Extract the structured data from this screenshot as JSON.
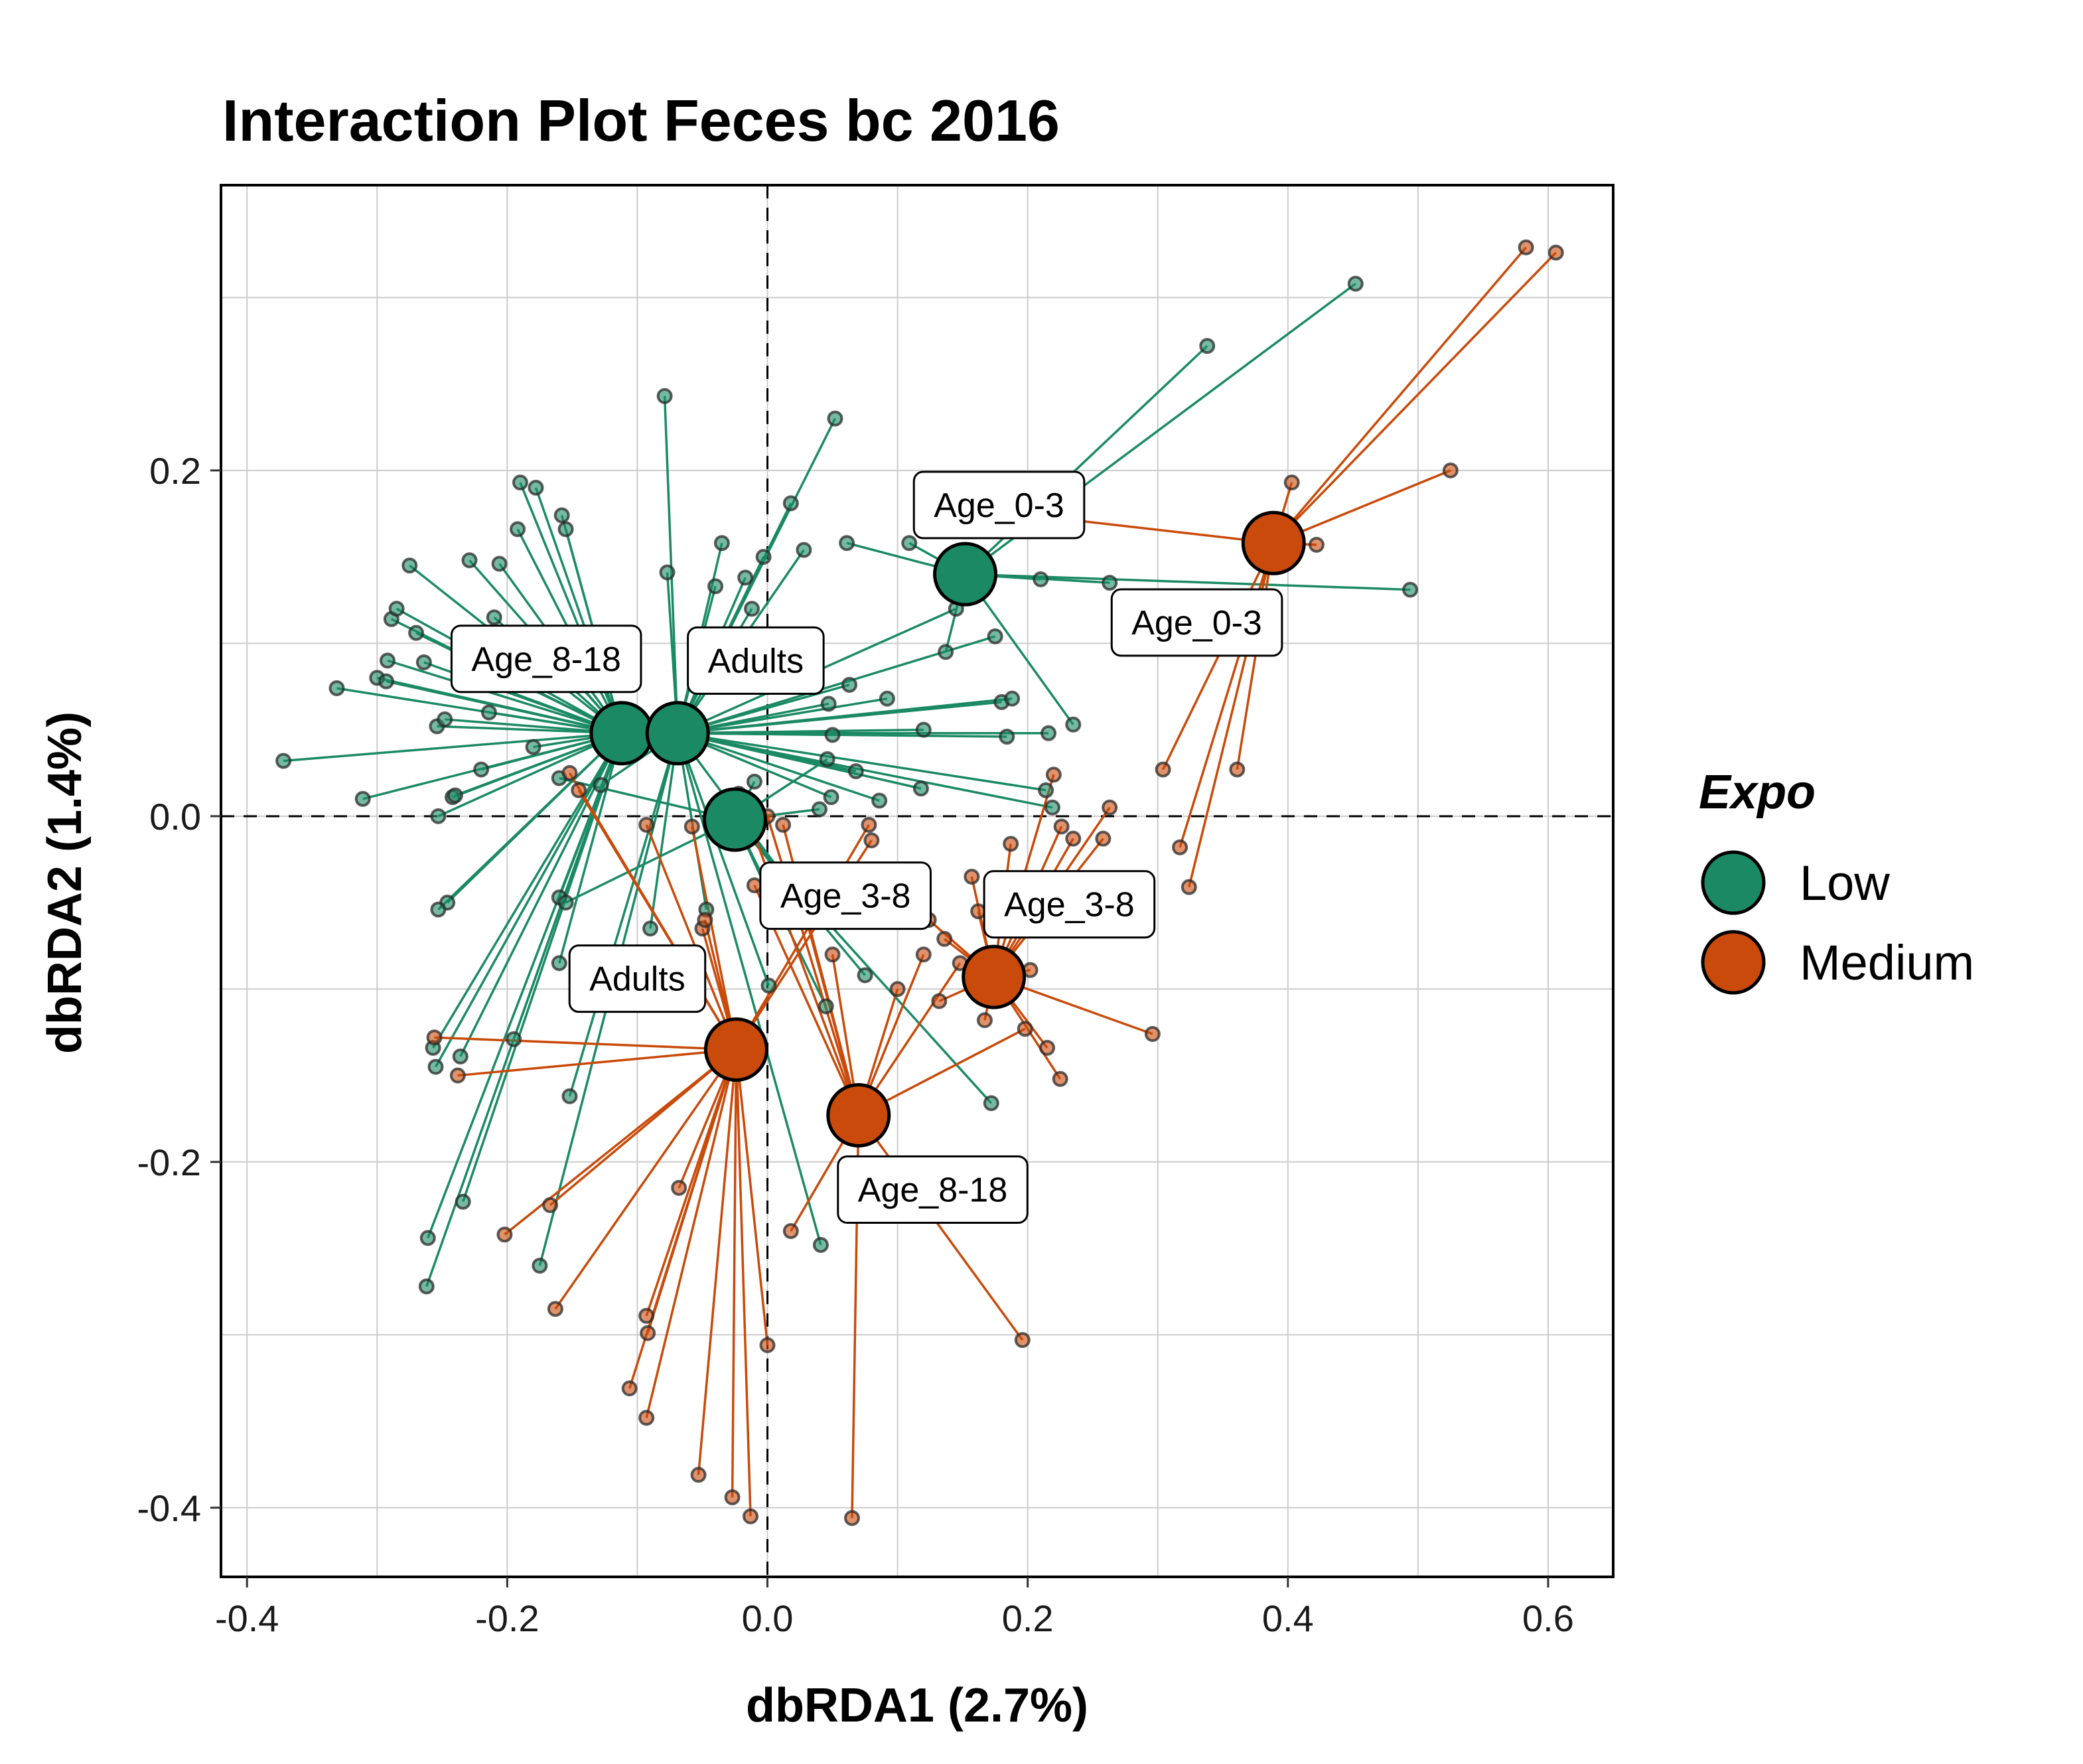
{
  "chart_data": {
    "type": "scatter",
    "title": "Interaction Plot Feces bc 2016",
    "xlabel": "dbRDA1 (2.7%)",
    "ylabel": "dbRDA2 (1.4%)",
    "xlim": [
      -0.42,
      0.65
    ],
    "ylim": [
      -0.44,
      0.365
    ],
    "xticks": [
      -0.4,
      -0.2,
      0.0,
      0.2,
      0.4,
      0.6
    ],
    "xtick_labels": [
      "-0.4",
      "-0.2",
      "0.0",
      "0.2",
      "0.4",
      "0.6"
    ],
    "yticks": [
      -0.4,
      -0.2,
      0.0,
      0.2
    ],
    "ytick_labels": [
      "-0.4",
      "-0.2",
      "0.0",
      "0.2"
    ],
    "grid": true,
    "reference_lines": {
      "x": 0,
      "y": 0,
      "style": "dashed"
    },
    "legend": {
      "title": "Expo",
      "position": "right",
      "entries": [
        {
          "label": "Low",
          "color": "#1b8a64"
        },
        {
          "label": "Medium",
          "color": "#c94a0a"
        }
      ]
    },
    "series": [
      {
        "name": "Low",
        "color": "#1b8a64",
        "groups": [
          {
            "label": "Age_0-3",
            "centroid": [
              0.152,
              0.14
            ],
            "label_pos": [
              0.178,
              0.18
            ],
            "points": [
              [
                0.452,
                0.308
              ],
              [
                0.338,
                0.272
              ],
              [
                0.494,
                0.131
              ],
              [
                0.263,
                0.135
              ],
              [
                0.21,
                0.137
              ],
              [
                0.235,
                0.053
              ],
              [
                0.109,
                0.158
              ],
              [
                0.137,
                0.095
              ],
              [
                0.061,
                0.158
              ],
              [
                0.15,
                0.153
              ]
            ]
          },
          {
            "label": "Age_8-18",
            "centroid": [
              -0.112,
              0.048
            ],
            "label_pos": [
              -0.17,
              0.091
            ],
            "points": [
              [
                -0.372,
                0.032
              ],
              [
                -0.331,
                0.074
              ],
              [
                -0.311,
                0.01
              ],
              [
                -0.3,
                0.08
              ],
              [
                -0.293,
                0.078
              ],
              [
                -0.292,
                0.09
              ],
              [
                -0.289,
                0.114
              ],
              [
                -0.285,
                0.12
              ],
              [
                -0.275,
                0.145
              ],
              [
                -0.27,
                0.106
              ],
              [
                -0.264,
                0.089
              ],
              [
                -0.254,
                0.052
              ],
              [
                -0.248,
                0.056
              ],
              [
                -0.242,
                0.011
              ],
              [
                -0.229,
                0.148
              ],
              [
                -0.22,
                0.078
              ],
              [
                -0.21,
                0.115
              ],
              [
                -0.206,
                0.146
              ],
              [
                -0.192,
                0.166
              ],
              [
                -0.19,
                0.193
              ],
              [
                -0.178,
                0.19
              ],
              [
                -0.158,
                0.174
              ],
              [
                -0.155,
                0.166
              ],
              [
                -0.172,
                0.1
              ],
              [
                -0.214,
                0.06
              ],
              [
                -0.18,
                0.04
              ],
              [
                -0.22,
                0.027
              ],
              [
                -0.24,
                0.012
              ],
              [
                -0.253,
                0.0
              ],
              [
                -0.246,
                -0.05
              ],
              [
                -0.253,
                -0.054
              ],
              [
                -0.16,
                -0.085
              ],
              [
                -0.257,
                -0.134
              ],
              [
                -0.255,
                -0.145
              ],
              [
                -0.261,
                -0.244
              ],
              [
                -0.262,
                -0.272
              ],
              [
                -0.236,
                -0.139
              ],
              [
                -0.234,
                -0.223
              ],
              [
                -0.195,
                -0.129
              ],
              [
                -0.16,
                -0.047
              ]
            ]
          },
          {
            "label": "Adults",
            "centroid": [
              -0.069,
              0.048
            ],
            "label_pos": [
              -0.009,
              0.09
            ],
            "points": [
              [
                -0.079,
                0.243
              ],
              [
                -0.077,
                0.141
              ],
              [
                -0.035,
                0.158
              ],
              [
                -0.04,
                0.133
              ],
              [
                -0.017,
                0.138
              ],
              [
                -0.012,
                0.12
              ],
              [
                -0.003,
                0.15
              ],
              [
                0.018,
                0.181
              ],
              [
                0.028,
                0.154
              ],
              [
                0.052,
                0.23
              ],
              [
                0.047,
                0.065
              ],
              [
                0.063,
                0.076
              ],
              [
                0.092,
                0.068
              ],
              [
                0.068,
                0.026
              ],
              [
                0.05,
                0.047
              ],
              [
                0.049,
                0.011
              ],
              [
                0.086,
                0.009
              ],
              [
                0.118,
                0.016
              ],
              [
                -0.128,
                0.018
              ],
              [
                -0.09,
                -0.065
              ],
              [
                -0.175,
                -0.26
              ],
              [
                -0.152,
                -0.162
              ],
              [
                0.015,
                -0.037
              ],
              [
                0.001,
                -0.098
              ],
              [
                0.041,
                -0.248
              ],
              [
                -0.047,
                -0.054
              ],
              [
                0.18,
                0.066
              ],
              [
                0.188,
                0.068
              ],
              [
                0.216,
                0.048
              ],
              [
                0.184,
                0.046
              ],
              [
                0.214,
                0.015
              ],
              [
                0.219,
                0.005
              ],
              [
                0.175,
                0.104
              ],
              [
                0.145,
                0.12
              ],
              [
                0.12,
                0.05
              ]
            ]
          },
          {
            "label": "Age_3-8",
            "centroid": [
              -0.025,
              -0.002
            ],
            "label_pos": [
              0.06,
              -0.046
            ],
            "points": [
              [
                0.172,
                -0.166
              ],
              [
                0.075,
                -0.092
              ],
              [
                0.045,
                -0.11
              ],
              [
                0.01,
                -0.06
              ],
              [
                -0.155,
                -0.05
              ],
              [
                -0.16,
                0.022
              ],
              [
                0.046,
                0.033
              ],
              [
                0.04,
                0.004
              ],
              [
                -0.01,
                0.02
              ]
            ]
          }
        ]
      },
      {
        "name": "Medium",
        "color": "#c94a0a",
        "groups": [
          {
            "label": "Age_0-3",
            "centroid": [
              0.389,
              0.158
            ],
            "label_pos": [
              0.33,
              0.112
            ],
            "points": [
              [
                0.583,
                0.329
              ],
              [
                0.606,
                0.326
              ],
              [
                0.525,
                0.2
              ],
              [
                0.403,
                0.193
              ],
              [
                0.422,
                0.157
              ],
              [
                0.361,
                0.027
              ],
              [
                0.324,
                -0.041
              ],
              [
                0.317,
                -0.018
              ],
              [
                0.304,
                0.027
              ],
              [
                0.121,
                0.181
              ]
            ]
          },
          {
            "label": "Age_3-8",
            "centroid": [
              0.174,
              -0.093
            ],
            "label_pos": [
              0.232,
              -0.051
            ],
            "points": [
              [
                0.296,
                -0.126
              ],
              [
                0.225,
                -0.152
              ],
              [
                0.215,
                -0.134
              ],
              [
                0.202,
                -0.089
              ],
              [
                0.162,
                -0.055
              ],
              [
                0.22,
                0.024
              ],
              [
                0.263,
                0.005
              ],
              [
                0.258,
                -0.013
              ],
              [
                0.235,
                -0.013
              ],
              [
                0.226,
                -0.006
              ],
              [
                0.187,
                -0.016
              ],
              [
                0.157,
                -0.035
              ],
              [
                0.124,
                -0.06
              ],
              [
                0.136,
                -0.071
              ],
              [
                0.132,
                -0.107
              ],
              [
                0.167,
                -0.118
              ]
            ]
          },
          {
            "label": "Adults",
            "centroid": [
              -0.024,
              -0.135
            ],
            "label_pos": [
              -0.1,
              -0.094
            ],
            "points": [
              [
                -0.256,
                -0.128
              ],
              [
                -0.238,
                -0.15
              ],
              [
                -0.202,
                -0.242
              ],
              [
                -0.167,
                -0.225
              ],
              [
                -0.163,
                -0.285
              ],
              [
                -0.152,
                0.025
              ],
              [
                -0.145,
                0.015
              ],
              [
                -0.093,
                -0.005
              ],
              [
                -0.068,
                -0.215
              ],
              [
                -0.058,
                -0.006
              ],
              [
                -0.05,
                -0.065
              ],
              [
                -0.048,
                -0.06
              ],
              [
                -0.106,
                -0.331
              ],
              [
                -0.093,
                -0.289
              ],
              [
                -0.092,
                -0.299
              ],
              [
                -0.093,
                -0.348
              ],
              [
                -0.053,
                -0.381
              ],
              [
                -0.027,
                -0.394
              ],
              [
                -0.013,
                -0.405
              ],
              [
                0.0,
                -0.306
              ],
              [
                0.078,
                -0.005
              ],
              [
                0.08,
                -0.014
              ]
            ]
          },
          {
            "label": "Age_8-18",
            "centroid": [
              0.07,
              -0.173
            ],
            "label_pos": [
              0.127,
              -0.216
            ],
            "points": [
              [
                0.065,
                -0.406
              ],
              [
                0.196,
                -0.303
              ],
              [
                0.018,
                -0.24
              ],
              [
                -0.022,
                0.013
              ],
              [
                0.0,
                0.0
              ],
              [
                0.012,
                -0.005
              ],
              [
                -0.01,
                -0.04
              ],
              [
                0.03,
                -0.06
              ],
              [
                0.05,
                -0.08
              ],
              [
                0.1,
                -0.1
              ],
              [
                0.12,
                -0.08
              ],
              [
                0.148,
                -0.085
              ],
              [
                0.198,
                -0.123
              ]
            ]
          }
        ]
      }
    ]
  }
}
